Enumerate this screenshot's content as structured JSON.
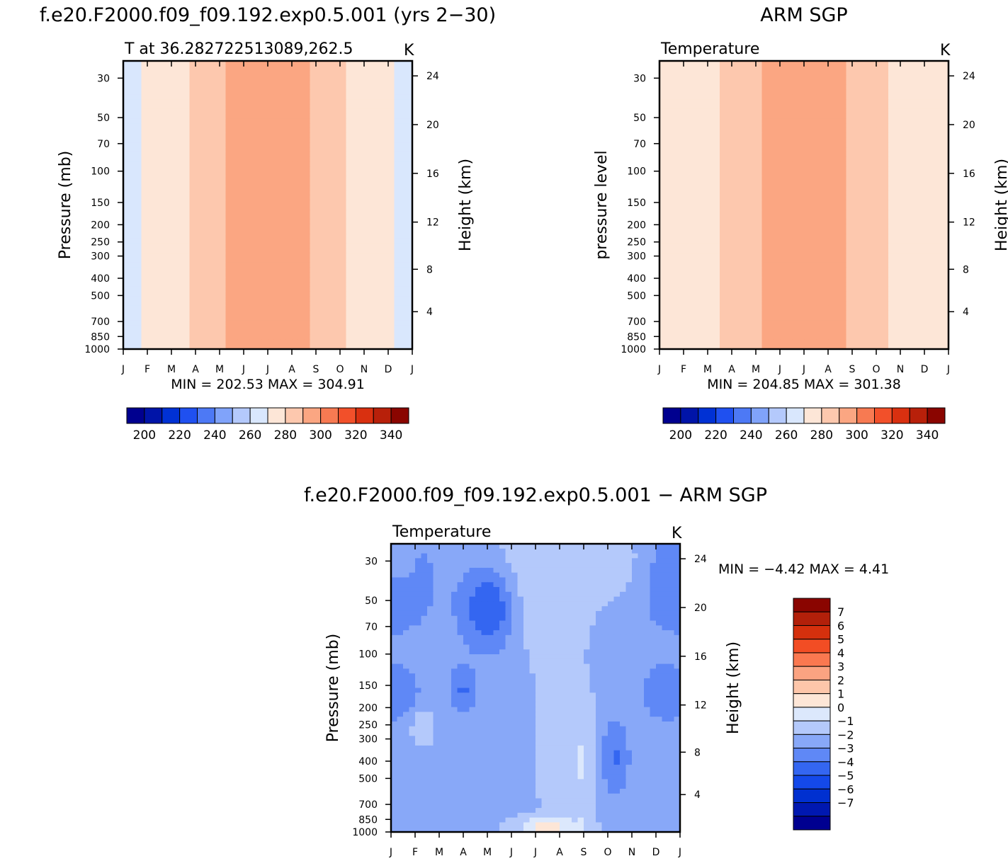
{
  "chart_data": [
    {
      "type": "heatmap",
      "id": "model",
      "title": "f.e20.F2000.f09_f09.192.exp0.5.001 (yrs 2−30)",
      "subtitle": "T at 36.282722513089,262.5",
      "units": "K",
      "ylabel": "Pressure (mb)",
      "y2label": "Height (km)",
      "x_ticks": [
        "J",
        "F",
        "M",
        "A",
        "M",
        "J",
        "J",
        "A",
        "S",
        "O",
        "N",
        "D",
        "J"
      ],
      "y_ticks": [
        {
          "p": 30,
          "label": "30"
        },
        {
          "p": 50,
          "label": "50"
        },
        {
          "p": 70,
          "label": "70"
        },
        {
          "p": 100,
          "label": "100"
        },
        {
          "p": 150,
          "label": "150"
        },
        {
          "p": 200,
          "label": "200"
        },
        {
          "p": 250,
          "label": "250"
        },
        {
          "p": 300,
          "label": "300"
        },
        {
          "p": 400,
          "label": "400"
        },
        {
          "p": 500,
          "label": "500"
        },
        {
          "p": 700,
          "label": "700"
        },
        {
          "p": 850,
          "label": "850"
        },
        {
          "p": 1000,
          "label": "1000"
        }
      ],
      "y2_ticks": [
        {
          "km": 24,
          "label": "24"
        },
        {
          "km": 20,
          "label": "20"
        },
        {
          "km": 16,
          "label": "16"
        },
        {
          "km": 12,
          "label": "12"
        },
        {
          "km": 8,
          "label": "8"
        },
        {
          "km": 4,
          "label": "4"
        }
      ],
      "ylim_mb": [
        1000,
        24
      ],
      "min_max_text": "MIN = 202.53 MAX = 304.91",
      "min": 202.53,
      "max": 304.91,
      "colorbar": {
        "levels": [
          195,
          200,
          205,
          210,
          215,
          220,
          225,
          230,
          235,
          240,
          245,
          250,
          255,
          260,
          265,
          270,
          275,
          280,
          285,
          290,
          295,
          300,
          305,
          310,
          315,
          320,
          325,
          330,
          335,
          340,
          345
        ],
        "tick_labels": [
          "200",
          "220",
          "240",
          "260",
          "280",
          "300",
          "320",
          "340"
        ]
      }
    },
    {
      "type": "heatmap",
      "id": "obs",
      "title": "ARM SGP",
      "subtitle": "Temperature",
      "units": "K",
      "ylabel": "pressure level",
      "y2label": "Height (km)",
      "x_ticks": [
        "J",
        "F",
        "M",
        "A",
        "M",
        "J",
        "J",
        "A",
        "S",
        "O",
        "N",
        "D",
        "J"
      ],
      "y_ticks": [
        {
          "p": 30,
          "label": "30"
        },
        {
          "p": 50,
          "label": "50"
        },
        {
          "p": 70,
          "label": "70"
        },
        {
          "p": 100,
          "label": "100"
        },
        {
          "p": 150,
          "label": "150"
        },
        {
          "p": 200,
          "label": "200"
        },
        {
          "p": 250,
          "label": "250"
        },
        {
          "p": 300,
          "label": "300"
        },
        {
          "p": 400,
          "label": "400"
        },
        {
          "p": 500,
          "label": "500"
        },
        {
          "p": 700,
          "label": "700"
        },
        {
          "p": 850,
          "label": "850"
        },
        {
          "p": 1000,
          "label": "1000"
        }
      ],
      "y2_ticks": [
        {
          "km": 24,
          "label": "24"
        },
        {
          "km": 20,
          "label": "20"
        },
        {
          "km": 16,
          "label": "16"
        },
        {
          "km": 12,
          "label": "12"
        },
        {
          "km": 8,
          "label": "8"
        },
        {
          "km": 4,
          "label": "4"
        }
      ],
      "ylim_mb": [
        1000,
        24
      ],
      "min_max_text": "MIN = 204.85 MAX = 301.38",
      "min": 204.85,
      "max": 301.38,
      "colorbar": {
        "levels": [
          195,
          200,
          205,
          210,
          215,
          220,
          225,
          230,
          235,
          240,
          245,
          250,
          255,
          260,
          265,
          270,
          275,
          280,
          285,
          290,
          295,
          300,
          305,
          310,
          315,
          320,
          325,
          330,
          335,
          340,
          345
        ],
        "tick_labels": [
          "200",
          "220",
          "240",
          "260",
          "280",
          "300",
          "320",
          "340"
        ]
      }
    },
    {
      "type": "heatmap",
      "id": "diff",
      "title": "f.e20.F2000.f09_f09.192.exp0.5.001 − ARM SGP",
      "subtitle": "Temperature",
      "units": "K",
      "ylabel": "Pressure (mb)",
      "y2label": "Height (km)",
      "x_ticks": [
        "J",
        "F",
        "M",
        "A",
        "M",
        "J",
        "J",
        "A",
        "S",
        "O",
        "N",
        "D",
        "J"
      ],
      "y_ticks": [
        {
          "p": 30,
          "label": "30"
        },
        {
          "p": 50,
          "label": "50"
        },
        {
          "p": 70,
          "label": "70"
        },
        {
          "p": 100,
          "label": "100"
        },
        {
          "p": 150,
          "label": "150"
        },
        {
          "p": 200,
          "label": "200"
        },
        {
          "p": 250,
          "label": "250"
        },
        {
          "p": 300,
          "label": "300"
        },
        {
          "p": 400,
          "label": "400"
        },
        {
          "p": 500,
          "label": "500"
        },
        {
          "p": 700,
          "label": "700"
        },
        {
          "p": 850,
          "label": "850"
        },
        {
          "p": 1000,
          "label": "1000"
        }
      ],
      "y2_ticks": [
        {
          "km": 24,
          "label": "24"
        },
        {
          "km": 20,
          "label": "20"
        },
        {
          "km": 16,
          "label": "16"
        },
        {
          "km": 12,
          "label": "12"
        },
        {
          "km": 8,
          "label": "8"
        },
        {
          "km": 4,
          "label": "4"
        }
      ],
      "ylim_mb": [
        1000,
        24
      ],
      "min_max_text": "MIN = −4.42 MAX = 4.41",
      "min": -4.42,
      "max": 4.41,
      "colorbar": {
        "levels": [
          -8,
          -7,
          -6,
          -5,
          -4,
          -3,
          -2,
          -1,
          0,
          1,
          2,
          3,
          4,
          5,
          6,
          7,
          8
        ],
        "tick_labels": [
          "7",
          "6",
          "5",
          "4",
          "3",
          "2",
          "1",
          "0",
          "−1",
          "−2",
          "−3",
          "−4",
          "−5",
          "−6",
          "−7"
        ]
      }
    }
  ],
  "colors": {
    "temperature_scale": [
      "#00008f",
      "#0014a8",
      "#0031d4",
      "#1f50f0",
      "#4d79f5",
      "#80a3fa",
      "#b4c9fc",
      "#d9e7fd",
      "#fde6d7",
      "#fdc8ae",
      "#fba682",
      "#f77a52",
      "#f2502a",
      "#d93010",
      "#b8200a",
      "#8a0500"
    ],
    "difference_scale": [
      "#000090",
      "#0018b0",
      "#0030d0",
      "#1449ea",
      "#3466f1",
      "#5f88f6",
      "#88a8f8",
      "#b4c9fb",
      "#dce8fc",
      "#fde6d7",
      "#fdc6aa",
      "#fba381",
      "#fa7850",
      "#f24d24",
      "#d5300d",
      "#b2200a",
      "#8a0500"
    ]
  }
}
